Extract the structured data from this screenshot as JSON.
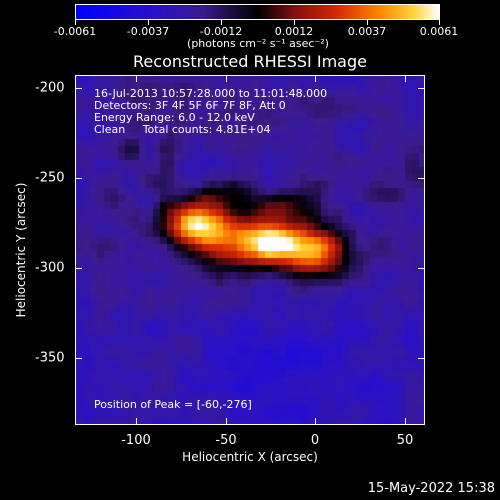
{
  "colorbar": {
    "ticks": [
      "-0.0061",
      "-0.0037",
      "-0.0012",
      "0.0012",
      "0.0037",
      "0.0061"
    ],
    "unit": "(photons cm⁻² s⁻¹ asec⁻²)"
  },
  "title": "Reconstructed RHESSI Image",
  "info": {
    "line1": "16-Jul-2013 10:57:28.000 to 11:01:48.000",
    "line2": "Detectors: 3F 4F 5F 6F 7F 8F, Att 0",
    "line3": "Energy Range: 6.0 - 12.0 keV",
    "line4": "Clean     Total counts: 4.81E+04"
  },
  "peak_text": "Position of Peak = [-60,-276]",
  "axes": {
    "xlabel": "Heliocentric X (arcsec)",
    "ylabel": "Heliocentric Y (arcsec)",
    "xticks": [
      "-100",
      "-50",
      "0",
      "50"
    ],
    "yticks": [
      "-200",
      "-250",
      "-300",
      "-350"
    ]
  },
  "footer_date": "15-May-2022 15:38",
  "chart_data": {
    "type": "heatmap",
    "title": "Reconstructed RHESSI Image",
    "xlabel": "Heliocentric X (arcsec)",
    "ylabel": "Heliocentric Y (arcsec)",
    "xlim": [
      -134,
      60
    ],
    "ylim": [
      -389,
      -195
    ],
    "colorbar_range": [
      -0.0061,
      0.0061
    ],
    "peak_position": [
      -60,
      -276
    ],
    "colormap": [
      "#0000ff",
      "#3a1a8a",
      "#4b1d6a",
      "#000000",
      "#7a1010",
      "#d02000",
      "#ff7f00",
      "#ffd21a",
      "#ffffff"
    ]
  }
}
